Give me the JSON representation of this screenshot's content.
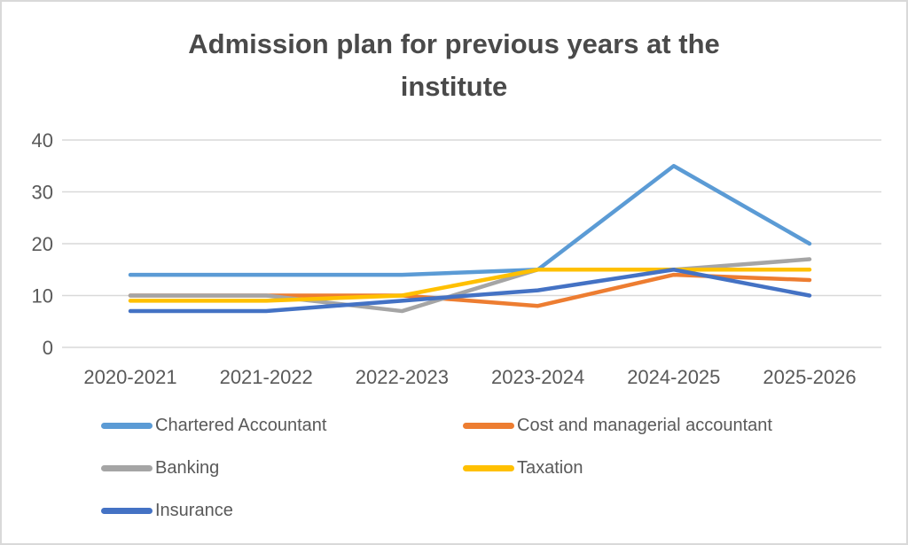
{
  "chart_data": {
    "type": "line",
    "title": "Admission plan for previous years at the institute",
    "categories": [
      "2020-2021",
      "2021-2022",
      "2022-2023",
      "2023-2024",
      "2024-2025",
      "2025-2026"
    ],
    "series": [
      {
        "name": "Chartered Accountant",
        "color": "#5B9BD5",
        "values": [
          14,
          14,
          14,
          15,
          35,
          20
        ]
      },
      {
        "name": "Cost and managerial accountant",
        "color": "#ED7D31",
        "values": [
          10,
          10,
          10,
          8,
          14,
          13
        ]
      },
      {
        "name": "Banking",
        "color": "#A5A5A5",
        "values": [
          10,
          10,
          7,
          15,
          15,
          17
        ]
      },
      {
        "name": "Taxation",
        "color": "#FFC000",
        "values": [
          9,
          9,
          10,
          15,
          15,
          15
        ]
      },
      {
        "name": "Insurance",
        "color": "#4472C4",
        "values": [
          7,
          7,
          9,
          11,
          15,
          10
        ]
      }
    ],
    "xlabel": "",
    "ylabel": "",
    "ylim": [
      0,
      40
    ],
    "yticks": [
      0,
      10,
      20,
      30,
      40
    ],
    "grid": "horizontal",
    "gridline_color": "#D9D9D9",
    "text_color": "#595959",
    "legend_position": "bottom"
  }
}
